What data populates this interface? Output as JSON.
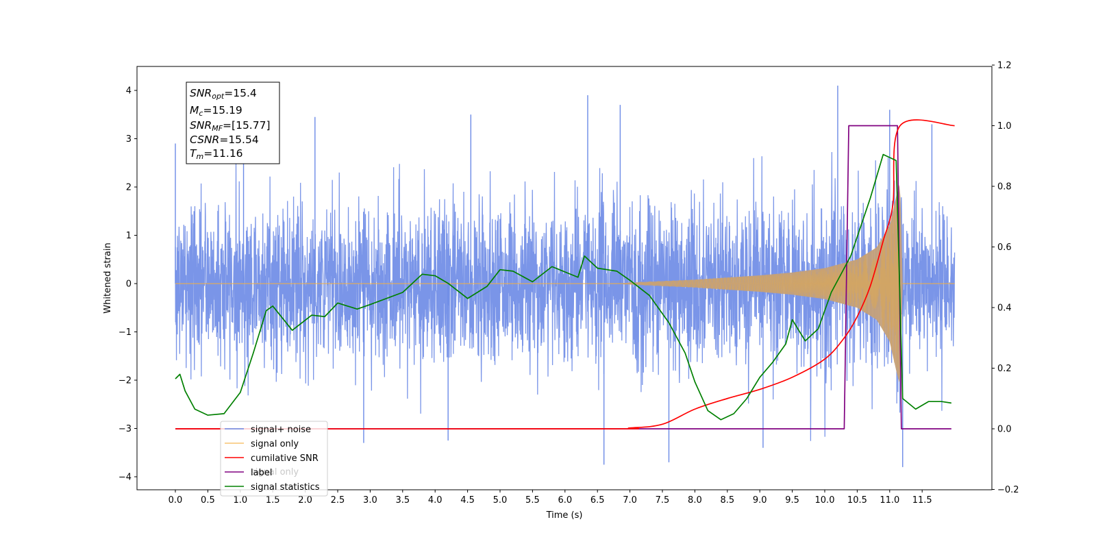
{
  "chart_data": {
    "type": "line",
    "xlabel": "Time (s)",
    "ylabel": "Whitened strain",
    "xlim": [
      -0.6,
      12.7
    ],
    "ylim": [
      -4.4,
      4.4
    ],
    "y2lim": [
      -0.2,
      1.2
    ],
    "x_ticks": [
      "0.0",
      "0.5",
      "1.0",
      "1.5",
      "2.0",
      "2.5",
      "3.0",
      "3.5",
      "4.0",
      "4.5",
      "5.0",
      "5.5",
      "6.0",
      "6.5",
      "7.0",
      "7.5",
      "8.0",
      "8.5",
      "9.0",
      "9.5",
      "10.0",
      "10.5",
      "11.0",
      "11.5"
    ],
    "y_ticks": [
      "4",
      "3",
      "2",
      "1",
      "0",
      "−1",
      "−2",
      "−3",
      "−4"
    ],
    "y2_ticks": [
      "1.2",
      "1.0",
      "0.8",
      "0.6",
      "0.4",
      "0.2",
      "0.0",
      "−0.2"
    ],
    "legend": [
      "signal+ noise",
      "signal only",
      "cumilative SNR",
      "label",
      "signal statistics"
    ],
    "legend_ghost_text": "signal only",
    "legend_placement": "lower-left",
    "colors": {
      "signal_noise": "#6b8ae6",
      "signal_only": "#f5b041",
      "signal_only_fill": "#c4a07a",
      "cumulative_snr": "#ff0000",
      "label": "#800080",
      "signal_statistics": "#008000"
    },
    "annotation": {
      "snr_opt": {
        "name": "SNR",
        "sub": "opt",
        "value": "=15.4"
      },
      "mc": {
        "name": "M",
        "sub": "c",
        "value": "=15.19"
      },
      "snr_mf": {
        "name": "SNR",
        "sub": "MF",
        "value": "=[15.77]"
      },
      "csnr": {
        "name": "CSNR",
        "sub": "",
        "value": "=15.54"
      },
      "tm": {
        "name": "T",
        "sub": "m",
        "value": "=11.16"
      }
    },
    "series": [
      {
        "name": "signal+ noise",
        "axis": "left",
        "description_range": [
          0.0,
          12.0
        ],
        "typical_band": [
          -1.6,
          1.6
        ],
        "extreme_peaks": [
          {
            "x": 0.0,
            "y": 2.9
          },
          {
            "x": 1.05,
            "y": 3.2
          },
          {
            "x": 2.15,
            "y": 3.45
          },
          {
            "x": 4.55,
            "y": 3.5
          },
          {
            "x": 6.35,
            "y": 3.9
          },
          {
            "x": 6.85,
            "y": 3.7
          },
          {
            "x": 10.2,
            "y": 4.1
          },
          {
            "x": 11.0,
            "y": 3.6
          },
          {
            "x": 11.65,
            "y": 3.3
          },
          {
            "x": 6.6,
            "y": -3.75
          },
          {
            "x": 7.6,
            "y": -3.7
          },
          {
            "x": 9.05,
            "y": -3.4
          },
          {
            "x": 11.2,
            "y": -3.8
          },
          {
            "x": 2.9,
            "y": -3.3
          },
          {
            "x": 4.2,
            "y": -3.25
          }
        ]
      },
      {
        "name": "signal only",
        "axis": "left",
        "chirp_start": 6.8,
        "merger_time": 11.16,
        "envelope": [
          {
            "x": 6.8,
            "a": 0.0
          },
          {
            "x": 7.0,
            "a": 0.02
          },
          {
            "x": 8.0,
            "a": 0.08
          },
          {
            "x": 9.0,
            "a": 0.17
          },
          {
            "x": 9.5,
            "a": 0.23
          },
          {
            "x": 10.0,
            "a": 0.32
          },
          {
            "x": 10.5,
            "a": 0.5
          },
          {
            "x": 10.8,
            "a": 0.75
          },
          {
            "x": 11.0,
            "a": 1.2
          },
          {
            "x": 11.1,
            "a": 1.8
          },
          {
            "x": 11.16,
            "a": 2.1
          },
          {
            "x": 11.2,
            "a": 0.05
          },
          {
            "x": 12.0,
            "a": 0.0
          }
        ]
      },
      {
        "name": "cumilative SNR",
        "axis": "right",
        "points": [
          {
            "x": 0.0,
            "y": 0.0
          },
          {
            "x": 6.5,
            "y": 0.0
          },
          {
            "x": 7.0,
            "y": 0.003
          },
          {
            "x": 7.5,
            "y": 0.015
          },
          {
            "x": 8.0,
            "y": 0.065
          },
          {
            "x": 8.5,
            "y": 0.1
          },
          {
            "x": 9.0,
            "y": 0.13
          },
          {
            "x": 9.5,
            "y": 0.17
          },
          {
            "x": 10.0,
            "y": 0.23
          },
          {
            "x": 10.3,
            "y": 0.3
          },
          {
            "x": 10.5,
            "y": 0.37
          },
          {
            "x": 10.7,
            "y": 0.47
          },
          {
            "x": 10.9,
            "y": 0.62
          },
          {
            "x": 11.05,
            "y": 0.74
          },
          {
            "x": 11.16,
            "y": 1.0
          },
          {
            "x": 12.0,
            "y": 1.0
          }
        ]
      },
      {
        "name": "label",
        "axis": "right",
        "points": [
          {
            "x": 0.0,
            "y": 0.0
          },
          {
            "x": 10.3,
            "y": 0.0
          },
          {
            "x": 10.37,
            "y": 1.0
          },
          {
            "x": 11.12,
            "y": 1.0
          },
          {
            "x": 11.18,
            "y": 0.0
          },
          {
            "x": 11.95,
            "y": 0.0
          }
        ]
      },
      {
        "name": "signal statistics",
        "axis": "right",
        "points": [
          {
            "x": 0.0,
            "y": 0.165
          },
          {
            "x": 0.07,
            "y": 0.18
          },
          {
            "x": 0.15,
            "y": 0.125
          },
          {
            "x": 0.3,
            "y": 0.065
          },
          {
            "x": 0.5,
            "y": 0.045
          },
          {
            "x": 0.75,
            "y": 0.05
          },
          {
            "x": 1.0,
            "y": 0.12
          },
          {
            "x": 1.2,
            "y": 0.25
          },
          {
            "x": 1.4,
            "y": 0.39
          },
          {
            "x": 1.5,
            "y": 0.405
          },
          {
            "x": 1.8,
            "y": 0.325
          },
          {
            "x": 2.1,
            "y": 0.375
          },
          {
            "x": 2.3,
            "y": 0.37
          },
          {
            "x": 2.5,
            "y": 0.415
          },
          {
            "x": 2.8,
            "y": 0.395
          },
          {
            "x": 3.0,
            "y": 0.41
          },
          {
            "x": 3.5,
            "y": 0.45
          },
          {
            "x": 3.8,
            "y": 0.51
          },
          {
            "x": 4.0,
            "y": 0.505
          },
          {
            "x": 4.2,
            "y": 0.48
          },
          {
            "x": 4.5,
            "y": 0.43
          },
          {
            "x": 4.8,
            "y": 0.47
          },
          {
            "x": 5.0,
            "y": 0.525
          },
          {
            "x": 5.2,
            "y": 0.52
          },
          {
            "x": 5.5,
            "y": 0.485
          },
          {
            "x": 5.8,
            "y": 0.535
          },
          {
            "x": 6.2,
            "y": 0.5
          },
          {
            "x": 6.3,
            "y": 0.57
          },
          {
            "x": 6.5,
            "y": 0.53
          },
          {
            "x": 6.8,
            "y": 0.52
          },
          {
            "x": 7.0,
            "y": 0.49
          },
          {
            "x": 7.3,
            "y": 0.44
          },
          {
            "x": 7.6,
            "y": 0.35
          },
          {
            "x": 7.85,
            "y": 0.25
          },
          {
            "x": 8.0,
            "y": 0.155
          },
          {
            "x": 8.2,
            "y": 0.06
          },
          {
            "x": 8.4,
            "y": 0.03
          },
          {
            "x": 8.6,
            "y": 0.05
          },
          {
            "x": 8.8,
            "y": 0.1
          },
          {
            "x": 9.0,
            "y": 0.17
          },
          {
            "x": 9.2,
            "y": 0.22
          },
          {
            "x": 9.4,
            "y": 0.28
          },
          {
            "x": 9.5,
            "y": 0.36
          },
          {
            "x": 9.7,
            "y": 0.29
          },
          {
            "x": 9.9,
            "y": 0.33
          },
          {
            "x": 10.1,
            "y": 0.45
          },
          {
            "x": 10.4,
            "y": 0.57
          },
          {
            "x": 10.7,
            "y": 0.76
          },
          {
            "x": 10.9,
            "y": 0.905
          },
          {
            "x": 11.1,
            "y": 0.885
          },
          {
            "x": 11.2,
            "y": 0.1
          },
          {
            "x": 11.4,
            "y": 0.065
          },
          {
            "x": 11.6,
            "y": 0.09
          },
          {
            "x": 11.8,
            "y": 0.09
          },
          {
            "x": 11.95,
            "y": 0.085
          }
        ]
      }
    ]
  }
}
